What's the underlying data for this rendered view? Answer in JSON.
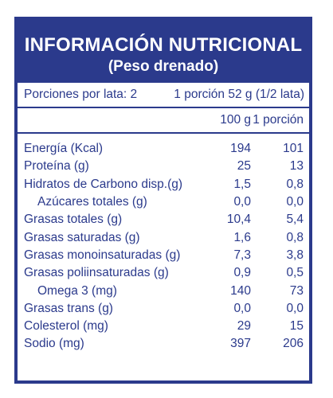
{
  "header": {
    "title": "INFORMACIÓN NUTRICIONAL",
    "subtitle": "(Peso drenado)"
  },
  "servings": {
    "per_can": "Porciones por lata: 2",
    "portion": "1 porción 52 g (1/2 lata)"
  },
  "columns": {
    "per100": "100 g",
    "per_portion": "1 porción"
  },
  "rows": [
    {
      "label": "Energía (Kcal)",
      "v100": "194",
      "vportion": "101",
      "indent": false
    },
    {
      "label": "Proteína (g)",
      "v100": "25",
      "vportion": "13",
      "indent": false
    },
    {
      "label": "Hidratos de Carbono disp.(g)",
      "v100": "1,5",
      "vportion": "0,8",
      "indent": false
    },
    {
      "label": "Azúcares totales (g)",
      "v100": "0,0",
      "vportion": "0,0",
      "indent": true
    },
    {
      "label": "Grasas totales (g)",
      "v100": "10,4",
      "vportion": "5,4",
      "indent": false
    },
    {
      "label": "Grasas saturadas (g)",
      "v100": "1,6",
      "vportion": "0,8",
      "indent": false
    },
    {
      "label": "Grasas monoinsaturadas (g)",
      "v100": "7,3",
      "vportion": "3,8",
      "indent": false
    },
    {
      "label": "Grasas poliinsaturadas (g)",
      "v100": "0,9",
      "vportion": "0,5",
      "indent": false
    },
    {
      "label": "Omega 3 (mg)",
      "v100": "140",
      "vportion": "73",
      "indent": true
    },
    {
      "label": "Grasas trans (g)",
      "v100": "0,0",
      "vportion": "0,0",
      "indent": false
    },
    {
      "label": "Colesterol (mg)",
      "v100": "29",
      "vportion": "15",
      "indent": false
    },
    {
      "label": "Sodio (mg)",
      "v100": "397",
      "vportion": "206",
      "indent": false
    }
  ],
  "colors": {
    "brand_blue": "#2b3a8c",
    "background": "#ffffff"
  }
}
